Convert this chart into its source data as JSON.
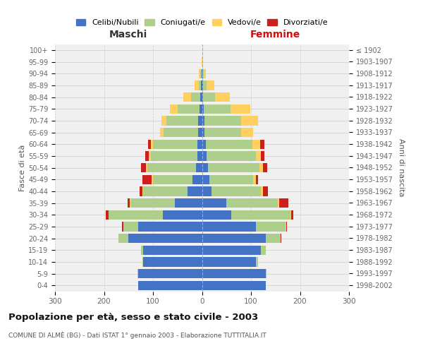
{
  "age_groups": [
    "0-4",
    "5-9",
    "10-14",
    "15-19",
    "20-24",
    "25-29",
    "30-34",
    "35-39",
    "40-44",
    "45-49",
    "50-54",
    "55-59",
    "60-64",
    "65-69",
    "70-74",
    "75-79",
    "80-84",
    "85-89",
    "90-94",
    "95-99",
    "100+"
  ],
  "birth_years": [
    "1998-2002",
    "1993-1997",
    "1988-1992",
    "1983-1987",
    "1978-1982",
    "1973-1977",
    "1968-1972",
    "1963-1967",
    "1958-1962",
    "1953-1957",
    "1948-1952",
    "1943-1947",
    "1938-1942",
    "1933-1937",
    "1928-1932",
    "1923-1927",
    "1918-1922",
    "1913-1917",
    "1908-1912",
    "1903-1907",
    "≤ 1902"
  ],
  "maschi": {
    "celibi": [
      130,
      130,
      120,
      120,
      150,
      130,
      80,
      55,
      30,
      20,
      12,
      10,
      10,
      8,
      8,
      5,
      3,
      2,
      1,
      0,
      0
    ],
    "coniugati": [
      0,
      1,
      2,
      5,
      20,
      30,
      110,
      90,
      90,
      80,
      100,
      95,
      90,
      70,
      65,
      45,
      20,
      5,
      2,
      0,
      0
    ],
    "vedovi": [
      0,
      0,
      0,
      0,
      0,
      1,
      1,
      2,
      2,
      3,
      3,
      3,
      5,
      8,
      10,
      15,
      15,
      8,
      3,
      1,
      0
    ],
    "divorziati": [
      0,
      0,
      0,
      0,
      1,
      2,
      5,
      5,
      5,
      18,
      10,
      8,
      5,
      0,
      0,
      0,
      0,
      0,
      0,
      0,
      0
    ]
  },
  "femmine": {
    "nubili": [
      130,
      130,
      110,
      120,
      130,
      110,
      60,
      50,
      20,
      15,
      12,
      10,
      8,
      5,
      5,
      3,
      2,
      2,
      1,
      0,
      0
    ],
    "coniugate": [
      0,
      2,
      5,
      10,
      30,
      60,
      120,
      105,
      100,
      90,
      105,
      100,
      95,
      75,
      75,
      55,
      25,
      8,
      2,
      0,
      0
    ],
    "vedove": [
      0,
      0,
      0,
      0,
      1,
      2,
      2,
      3,
      5,
      5,
      8,
      10,
      15,
      25,
      35,
      40,
      30,
      15,
      5,
      2,
      0
    ],
    "divorziate": [
      0,
      0,
      0,
      0,
      1,
      2,
      5,
      18,
      10,
      5,
      8,
      8,
      10,
      0,
      0,
      0,
      0,
      0,
      0,
      0,
      0
    ]
  },
  "colors": {
    "celibi": "#4472C4",
    "coniugati": "#AECF8C",
    "vedovi": "#FFD060",
    "divorziati": "#CC2020"
  },
  "title": "Popolazione per età, sesso e stato civile - 2003",
  "subtitle": "COMUNE DI ALMÈ (BG) - Dati ISTAT 1° gennaio 2003 - Elaborazione TUTTITALIA.IT",
  "header_maschi": "Maschi",
  "header_femmine": "Femmine",
  "ylabel_left": "Fasce di età",
  "ylabel_right": "Anni di nascita",
  "legend_labels": [
    "Celibi/Nubili",
    "Coniugati/e",
    "Vedovi/e",
    "Divorziati/e"
  ],
  "xlim": 300,
  "bg_color": "#ffffff",
  "plot_bg_color": "#f0f0f0",
  "grid_color": "#cccccc"
}
